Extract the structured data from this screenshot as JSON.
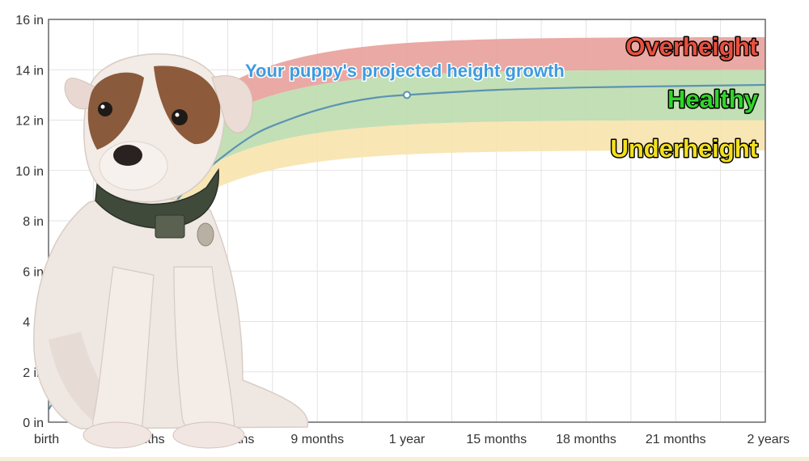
{
  "chart_data": {
    "type": "area",
    "title": "",
    "xlabel": "",
    "ylabel": "",
    "x_ticks": [
      "birth",
      "3 months",
      "6 months",
      "9 months",
      "1 year",
      "15 months",
      "18 months",
      "21 months",
      "2 years"
    ],
    "x_tick_months": [
      0,
      3,
      6,
      9,
      12,
      15,
      18,
      21,
      24
    ],
    "y_ticks": [
      "0 in",
      "2 in",
      "4 in",
      "6 in",
      "8 in",
      "10 in",
      "12 in",
      "14 in",
      "16 in"
    ],
    "y_tick_values": [
      0,
      2,
      4,
      6,
      8,
      10,
      12,
      14,
      16
    ],
    "xlim": [
      0,
      24
    ],
    "ylim": [
      0,
      16
    ],
    "grid": true,
    "bands": [
      {
        "name": "Overheight",
        "color": "#e8a09a",
        "label_color": "#e8513f",
        "lower_final": 14.0,
        "upper_final": 15.3
      },
      {
        "name": "Healthy",
        "color": "#bcdcad",
        "label_color": "#2fd62a",
        "lower_final": 12.0,
        "upper_final": 14.0
      },
      {
        "name": "Underheight",
        "color": "#f7e3ad",
        "label_color": "#f3e01d",
        "lower_final": 10.8,
        "upper_final": 12.0
      }
    ],
    "series": [
      {
        "color": "#5b93b5",
        "x": [
          0,
          1,
          2,
          3,
          4,
          5,
          6,
          7,
          8,
          9,
          10,
          11,
          12,
          15,
          18,
          21,
          24
        ],
        "y": [
          0.5,
          2.4,
          4.6,
          6.7,
          8.4,
          9.7,
          10.7,
          11.5,
          12.0,
          12.4,
          12.7,
          12.9,
          13.0,
          13.2,
          13.3,
          13.35,
          13.4
        ]
      }
    ],
    "marker": {
      "x": 12,
      "y": 13.0
    },
    "annotation": "Your puppy's projected height growth"
  }
}
